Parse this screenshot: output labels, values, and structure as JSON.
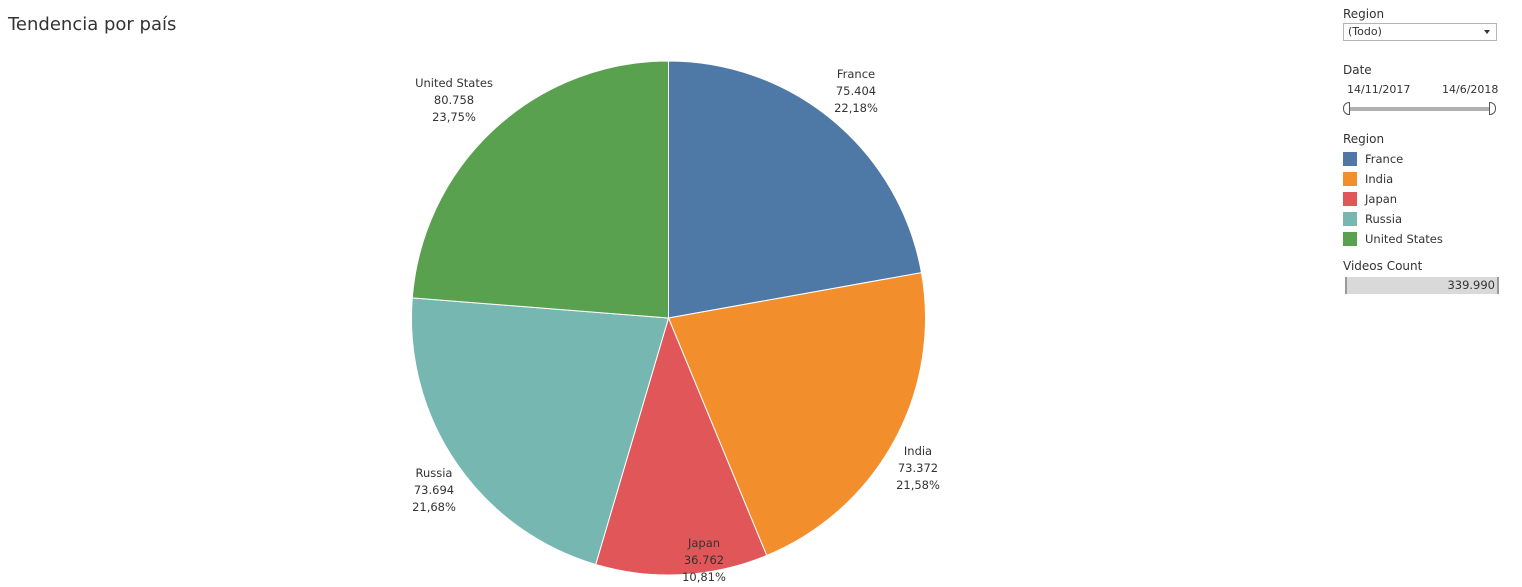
{
  "title": "Tendencia por país",
  "filters": {
    "region_label": "Region",
    "region_value": "(Todo)",
    "date_label": "Date",
    "date_start": "14/11/2017",
    "date_end": "14/6/2018"
  },
  "legend": {
    "title": "Region",
    "items": [
      {
        "label": "France",
        "color": "#4e79a7"
      },
      {
        "label": "India",
        "color": "#f28e2b"
      },
      {
        "label": "Japan",
        "color": "#e15759"
      },
      {
        "label": "Russia",
        "color": "#76b7b2"
      },
      {
        "label": "United States",
        "color": "#59a14f"
      }
    ]
  },
  "total": {
    "label": "Videos Count",
    "value": "339.990"
  },
  "slices": [
    {
      "name": "France",
      "value": "75.404",
      "pct": "22,18%"
    },
    {
      "name": "India",
      "value": "73.372",
      "pct": "21,58%"
    },
    {
      "name": "Japan",
      "value": "36.762",
      "pct": "10,81%"
    },
    {
      "name": "Russia",
      "value": "73.694",
      "pct": "21,68%"
    },
    {
      "name": "United States",
      "value": "80.758",
      "pct": "23,75%"
    }
  ],
  "chart_data": {
    "type": "pie",
    "title": "Tendencia por país",
    "categories": [
      "France",
      "India",
      "Japan",
      "Russia",
      "United States"
    ],
    "values": [
      75404,
      73372,
      36762,
      73694,
      80758
    ],
    "percentages": [
      22.18,
      21.58,
      10.81,
      21.68,
      23.75
    ],
    "colors": [
      "#4e79a7",
      "#f28e2b",
      "#e15759",
      "#76b7b2",
      "#59a14f"
    ],
    "total": 339990,
    "legend_title": "Region",
    "legend_position": "right"
  }
}
